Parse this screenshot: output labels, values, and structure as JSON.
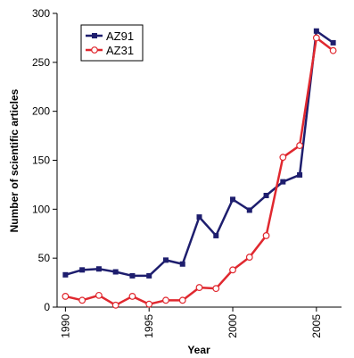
{
  "chart_data": {
    "type": "line",
    "xlabel": "Year",
    "ylabel": "Number of scientific articles",
    "xlim": [
      1989.5,
      2006.5
    ],
    "ylim": [
      0,
      300
    ],
    "x_ticks": [
      1990,
      1995,
      2000,
      2005
    ],
    "y_ticks": [
      0,
      50,
      100,
      150,
      200,
      250,
      300
    ],
    "x_tick_labels": [
      "1990",
      "1995",
      "2000",
      "2005"
    ],
    "y_tick_labels": [
      "0",
      "50",
      "100",
      "150",
      "200",
      "250",
      "300"
    ],
    "legend_position": "top-left",
    "grid": false,
    "x": [
      1990,
      1991,
      1992,
      1993,
      1994,
      1995,
      1996,
      1997,
      1998,
      1999,
      2000,
      2001,
      2002,
      2003,
      2004,
      2005,
      2006
    ],
    "series": [
      {
        "name": "AZ91",
        "color": "#1e1e6e",
        "marker": "square",
        "values": [
          33,
          38,
          39,
          36,
          32,
          32,
          48,
          44,
          92,
          73,
          110,
          99,
          114,
          128,
          135,
          282,
          270
        ]
      },
      {
        "name": "AZ31",
        "color": "#e0282f",
        "marker": "circle-open",
        "values": [
          11,
          7,
          12,
          2,
          11,
          3,
          7,
          7,
          20,
          19,
          38,
          51,
          73,
          153,
          165,
          275,
          262
        ]
      }
    ]
  }
}
